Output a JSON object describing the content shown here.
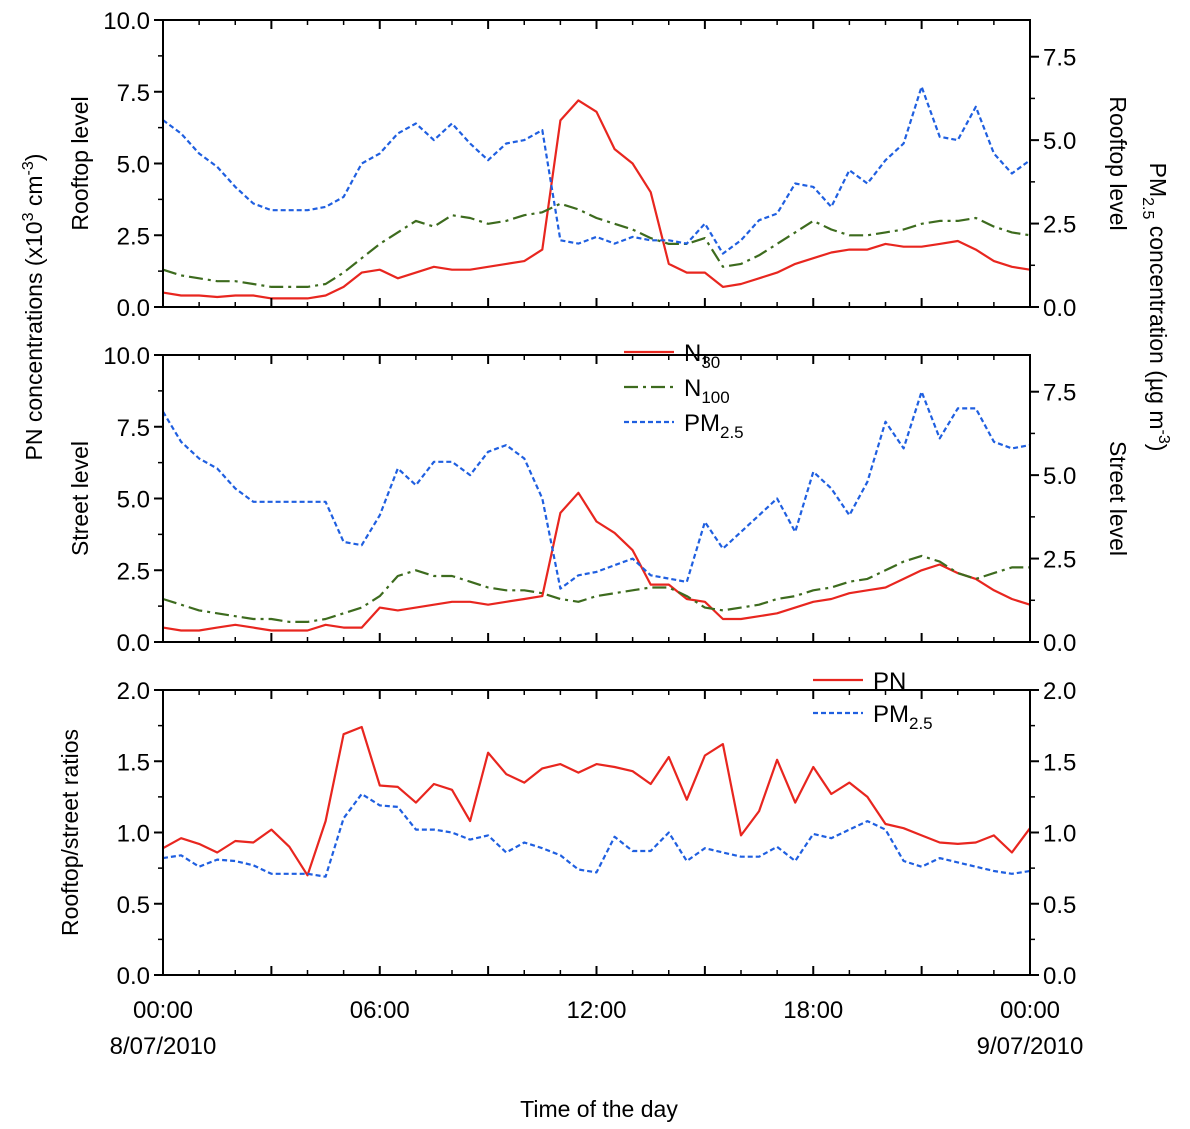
{
  "chart_data": [
    {
      "type": "line",
      "panel": "rooftop",
      "ylabel": "Rooftop level",
      "ylabel_right": "Rooftop level",
      "ylim": [
        0,
        10
      ],
      "ylim_right": [
        0,
        8.6
      ],
      "y_ticks": [
        "0.0",
        "2.5",
        "5.0",
        "7.5",
        "10.0"
      ],
      "y_ticks_right": [
        "0.0",
        "2.5",
        "5.0",
        "7.5"
      ],
      "x": [
        0,
        0.5,
        1,
        1.5,
        2,
        2.5,
        3,
        3.5,
        4,
        4.5,
        5,
        5.5,
        6,
        6.5,
        7,
        7.5,
        8,
        8.5,
        9,
        9.5,
        10,
        10.5,
        11,
        11.5,
        12,
        12.5,
        13,
        13.5,
        14,
        14.5,
        15,
        15.5,
        16,
        16.5,
        17,
        17.5,
        18,
        18.5,
        19,
        19.5,
        20,
        20.5,
        21,
        21.5,
        22,
        22.5,
        23,
        23.5,
        24
      ],
      "series": [
        {
          "name": "N30",
          "axis": "left",
          "color": "#e8261f",
          "dash": "solid",
          "values": [
            0.5,
            0.4,
            0.4,
            0.35,
            0.4,
            0.4,
            0.3,
            0.3,
            0.3,
            0.4,
            0.7,
            1.2,
            1.3,
            1.0,
            1.2,
            1.4,
            1.3,
            1.3,
            1.4,
            1.5,
            1.6,
            2.0,
            6.5,
            7.2,
            6.8,
            5.5,
            5.0,
            4.0,
            1.5,
            1.2,
            1.2,
            0.7,
            0.8,
            1.0,
            1.2,
            1.5,
            1.7,
            1.9,
            2.0,
            2.0,
            2.2,
            2.1,
            2.1,
            2.2,
            2.3,
            2.0,
            1.6,
            1.4,
            1.3
          ]
        },
        {
          "name": "N100",
          "axis": "left",
          "color": "#3d6b1e",
          "dash": "dashdot",
          "values": [
            1.3,
            1.1,
            1.0,
            0.9,
            0.9,
            0.8,
            0.7,
            0.7,
            0.7,
            0.8,
            1.2,
            1.7,
            2.2,
            2.6,
            3.0,
            2.8,
            3.2,
            3.1,
            2.9,
            3.0,
            3.2,
            3.3,
            3.6,
            3.4,
            3.1,
            2.9,
            2.7,
            2.4,
            2.2,
            2.2,
            2.4,
            1.4,
            1.5,
            1.8,
            2.2,
            2.6,
            3.0,
            2.7,
            2.5,
            2.5,
            2.6,
            2.7,
            2.9,
            3.0,
            3.0,
            3.1,
            2.8,
            2.6,
            2.5
          ]
        },
        {
          "name": "PM2.5",
          "axis": "right",
          "color": "#1f5fe0",
          "dash": "dotted",
          "values": [
            5.6,
            5.2,
            4.6,
            4.2,
            3.6,
            3.1,
            2.9,
            2.9,
            2.9,
            3.0,
            3.3,
            4.3,
            4.6,
            5.2,
            5.5,
            5.0,
            5.5,
            4.9,
            4.4,
            4.9,
            5.0,
            5.3,
            2.0,
            1.9,
            2.1,
            1.9,
            2.1,
            2.0,
            2.0,
            1.9,
            2.5,
            1.6,
            2.0,
            2.6,
            2.8,
            3.7,
            3.6,
            3.0,
            4.1,
            3.7,
            4.4,
            4.9,
            6.6,
            5.1,
            5.0,
            6.0,
            4.6,
            4.0,
            4.4
          ]
        }
      ]
    },
    {
      "type": "line",
      "panel": "street",
      "ylabel": "Street level",
      "ylabel_right": "Street level",
      "ylim": [
        0,
        10
      ],
      "ylim_right": [
        0,
        8.6
      ],
      "y_ticks": [
        "0.0",
        "2.5",
        "5.0",
        "7.5",
        "10.0"
      ],
      "y_ticks_right": [
        "0.0",
        "2.5",
        "5.0",
        "7.5"
      ],
      "x": [
        0,
        0.5,
        1,
        1.5,
        2,
        2.5,
        3,
        3.5,
        4,
        4.5,
        5,
        5.5,
        6,
        6.5,
        7,
        7.5,
        8,
        8.5,
        9,
        9.5,
        10,
        10.5,
        11,
        11.5,
        12,
        12.5,
        13,
        13.5,
        14,
        14.5,
        15,
        15.5,
        16,
        16.5,
        17,
        17.5,
        18,
        18.5,
        19,
        19.5,
        20,
        20.5,
        21,
        21.5,
        22,
        22.5,
        23,
        23.5,
        24
      ],
      "series": [
        {
          "name": "N30",
          "axis": "left",
          "color": "#e8261f",
          "dash": "solid",
          "values": [
            0.5,
            0.4,
            0.4,
            0.5,
            0.6,
            0.5,
            0.4,
            0.4,
            0.4,
            0.6,
            0.5,
            0.5,
            1.2,
            1.1,
            1.2,
            1.3,
            1.4,
            1.4,
            1.3,
            1.4,
            1.5,
            1.6,
            4.5,
            5.2,
            4.2,
            3.8,
            3.2,
            2.0,
            2.0,
            1.5,
            1.4,
            0.8,
            0.8,
            0.9,
            1.0,
            1.2,
            1.4,
            1.5,
            1.7,
            1.8,
            1.9,
            2.2,
            2.5,
            2.7,
            2.4,
            2.2,
            1.8,
            1.5,
            1.3
          ]
        },
        {
          "name": "N100",
          "axis": "left",
          "color": "#3d6b1e",
          "dash": "dashdot",
          "values": [
            1.5,
            1.3,
            1.1,
            1.0,
            0.9,
            0.8,
            0.8,
            0.7,
            0.7,
            0.8,
            1.0,
            1.2,
            1.6,
            2.3,
            2.5,
            2.3,
            2.3,
            2.1,
            1.9,
            1.8,
            1.8,
            1.7,
            1.5,
            1.4,
            1.6,
            1.7,
            1.8,
            1.9,
            1.9,
            1.6,
            1.2,
            1.1,
            1.2,
            1.3,
            1.5,
            1.6,
            1.8,
            1.9,
            2.1,
            2.2,
            2.5,
            2.8,
            3.0,
            2.8,
            2.4,
            2.2,
            2.4,
            2.6,
            2.6
          ]
        },
        {
          "name": "PM2.5",
          "axis": "right",
          "color": "#1f5fe0",
          "dash": "dotted",
          "values": [
            6.9,
            6.0,
            5.5,
            5.2,
            4.6,
            4.2,
            4.2,
            4.2,
            4.2,
            4.2,
            3.0,
            2.9,
            3.8,
            5.2,
            4.7,
            5.4,
            5.4,
            5.0,
            5.7,
            5.9,
            5.5,
            4.3,
            1.6,
            2.0,
            2.1,
            2.3,
            2.5,
            2.0,
            1.9,
            1.8,
            3.6,
            2.8,
            3.3,
            3.8,
            4.3,
            3.3,
            5.1,
            4.6,
            3.8,
            4.8,
            6.6,
            5.8,
            7.5,
            6.1,
            7.0,
            7.0,
            6.0,
            5.8,
            5.9
          ]
        }
      ]
    },
    {
      "type": "line",
      "panel": "ratios",
      "ylabel": "Rooftop/street ratios",
      "ylim": [
        0,
        2
      ],
      "ylim_right": [
        0,
        2
      ],
      "y_ticks": [
        "0.0",
        "0.5",
        "1.0",
        "1.5",
        "2.0"
      ],
      "y_ticks_right": [
        "0.0",
        "0.5",
        "1.0",
        "1.5",
        "2.0"
      ],
      "x": [
        0,
        0.5,
        1,
        1.5,
        2,
        2.5,
        3,
        3.5,
        4,
        4.5,
        5,
        5.5,
        6,
        6.5,
        7,
        7.5,
        8,
        8.5,
        9,
        9.5,
        10,
        10.5,
        11,
        11.5,
        12,
        12.5,
        13,
        13.5,
        14,
        14.5,
        15,
        15.5,
        16,
        16.5,
        17,
        17.5,
        18,
        18.5,
        19,
        19.5,
        20,
        20.5,
        21,
        21.5,
        22,
        22.5,
        23,
        23.5,
        24
      ],
      "series": [
        {
          "name": "PN",
          "axis": "left",
          "color": "#e8261f",
          "dash": "solid",
          "values": [
            0.89,
            0.96,
            0.92,
            0.86,
            0.94,
            0.93,
            1.02,
            0.9,
            0.7,
            1.08,
            1.69,
            1.74,
            1.33,
            1.32,
            1.21,
            1.34,
            1.3,
            1.08,
            1.56,
            1.41,
            1.35,
            1.45,
            1.48,
            1.42,
            1.48,
            1.46,
            1.43,
            1.34,
            1.53,
            1.23,
            1.54,
            1.62,
            0.98,
            1.15,
            1.51,
            1.21,
            1.46,
            1.27,
            1.35,
            1.25,
            1.06,
            1.03,
            0.98,
            0.93,
            0.92,
            0.93,
            0.98,
            0.86,
            1.03
          ]
        },
        {
          "name": "PM2.5",
          "axis": "left",
          "color": "#1f5fe0",
          "dash": "dotted",
          "values": [
            0.82,
            0.84,
            0.76,
            0.81,
            0.8,
            0.77,
            0.71,
            0.71,
            0.71,
            0.69,
            1.1,
            1.27,
            1.19,
            1.18,
            1.02,
            1.02,
            1.0,
            0.95,
            0.98,
            0.86,
            0.93,
            0.89,
            0.84,
            0.74,
            0.72,
            0.97,
            0.87,
            0.87,
            1.0,
            0.8,
            0.89,
            0.86,
            0.83,
            0.83,
            0.9,
            0.8,
            0.99,
            0.96,
            1.02,
            1.08,
            1.02,
            0.8,
            0.76,
            0.82,
            0.79,
            0.76,
            0.73,
            0.71,
            0.73
          ]
        }
      ]
    }
  ],
  "axes": {
    "left_title": "PN concentrations (x10",
    "left_title_sup": "3",
    "left_title_unit": " cm",
    "left_title_unit_sup": "-3",
    "left_title_close": ")",
    "right_title": "PM",
    "right_title_sub": "2.5",
    "right_title_rest": " concentration (µg m",
    "right_title_sup": "-3",
    "right_title_close": ")",
    "x_title": "Time of the day",
    "x_ticks": [
      {
        "value": 0,
        "label": "00:00",
        "date": "8/07/2010"
      },
      {
        "value": 6,
        "label": "06:00",
        "date": ""
      },
      {
        "value": 12,
        "label": "12:00",
        "date": ""
      },
      {
        "value": 18,
        "label": "18:00",
        "date": ""
      },
      {
        "value": 24,
        "label": "00:00",
        "date": "9/07/2010"
      }
    ],
    "x_range": [
      0,
      24
    ]
  },
  "legends": {
    "top": [
      {
        "main": "N",
        "sub": "30",
        "color": "#e8261f",
        "dash": "solid"
      },
      {
        "main": "N",
        "sub": "100",
        "color": "#3d6b1e",
        "dash": "dashdot"
      },
      {
        "main": "PM",
        "sub": "2.5",
        "color": "#1f5fe0",
        "dash": "dotted"
      }
    ],
    "bottom": [
      {
        "main": "PN",
        "sub": "",
        "color": "#e8261f",
        "dash": "solid"
      },
      {
        "main": "PM",
        "sub": "2.5",
        "color": "#1f5fe0",
        "dash": "dotted"
      }
    ]
  }
}
